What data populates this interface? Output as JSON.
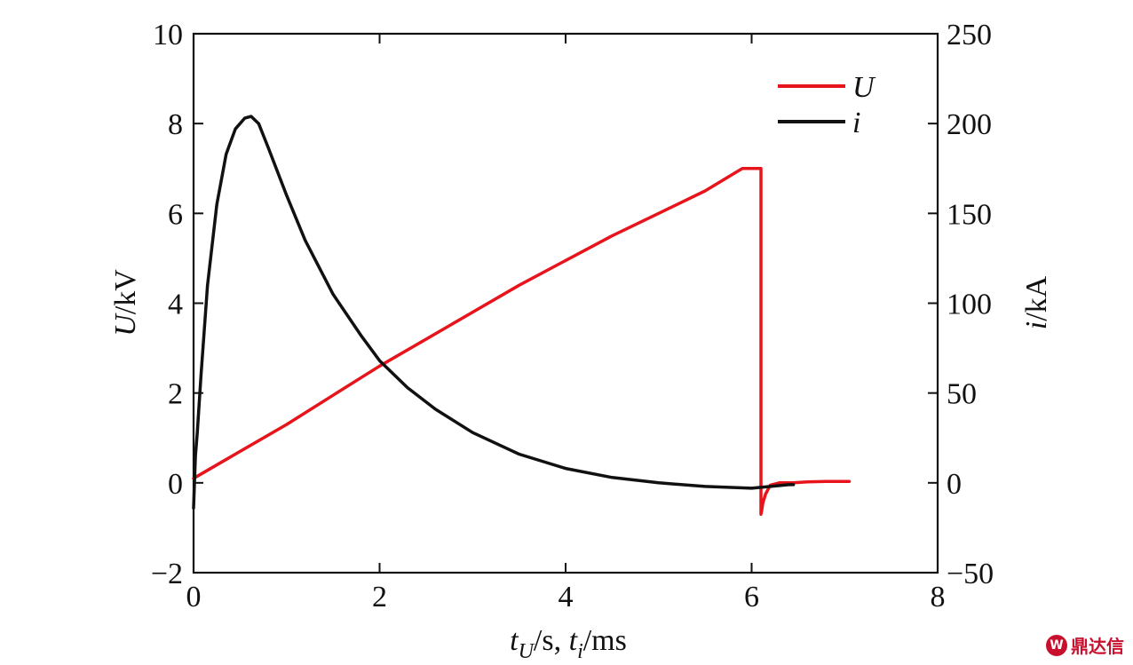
{
  "chart_data": {
    "type": "line",
    "xlabel": "t_U/s, t_i/ms",
    "xlim": [
      0,
      8
    ],
    "x_ticks": [
      "0",
      "2",
      "4",
      "6",
      "8"
    ],
    "ylabel_left": "U/kV",
    "ylim_left": [
      -2,
      10
    ],
    "y_ticks_left": [
      "−2",
      "0",
      "2",
      "4",
      "6",
      "8",
      "10"
    ],
    "ylabel_right": "i/kA",
    "ylim_right": [
      -50,
      250
    ],
    "y_ticks_right": [
      "−50",
      "0",
      "50",
      "100",
      "150",
      "200",
      "250"
    ],
    "grid": false,
    "legend_position": "top-right",
    "series": [
      {
        "name": "U",
        "axis": "left",
        "color": "#e8141c",
        "x": [
          0.0,
          0.5,
          1.0,
          1.5,
          2.0,
          2.5,
          3.0,
          3.5,
          4.0,
          4.5,
          5.0,
          5.5,
          5.9,
          6.1,
          6.1,
          6.11,
          6.12,
          6.15,
          6.2,
          6.3,
          6.45,
          6.6,
          6.8,
          7.0,
          7.05
        ],
        "y": [
          0.1,
          0.7,
          1.3,
          1.95,
          2.6,
          3.2,
          3.8,
          4.4,
          4.95,
          5.5,
          6.0,
          6.5,
          7.0,
          7.0,
          -0.7,
          -0.6,
          -0.45,
          -0.25,
          -0.05,
          0.0,
          0.0,
          0.02,
          0.03,
          0.03,
          0.03
        ]
      },
      {
        "name": "i",
        "axis": "right",
        "color": "#111111",
        "x": [
          0.0,
          0.02,
          0.04,
          0.08,
          0.15,
          0.25,
          0.35,
          0.45,
          0.55,
          0.62,
          0.7,
          0.8,
          1.0,
          1.2,
          1.5,
          1.8,
          2.0,
          2.3,
          2.6,
          3.0,
          3.5,
          4.0,
          4.5,
          5.0,
          5.5,
          6.0,
          6.2,
          6.4,
          6.45
        ],
        "y": [
          -14,
          15,
          28,
          60,
          110,
          155,
          183,
          197,
          203,
          204,
          200,
          187,
          160,
          135,
          105,
          82,
          68,
          53,
          41,
          28,
          16,
          8,
          3,
          0,
          -2,
          -3,
          -2,
          -1,
          -1
        ]
      }
    ]
  },
  "watermark": {
    "logo_text": "W",
    "text": "鼎达信"
  }
}
